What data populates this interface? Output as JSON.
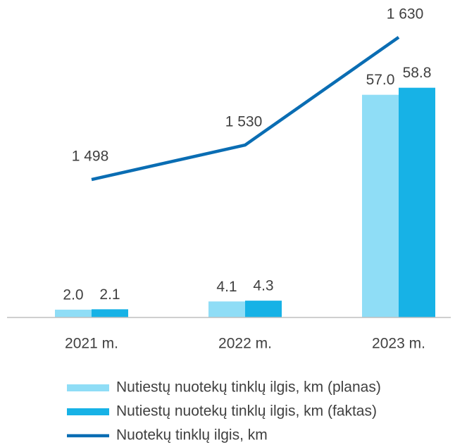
{
  "chart_data": {
    "type": "bar_line",
    "categories": [
      "2021 m.",
      "2022 m.",
      "2023 m."
    ],
    "series": [
      {
        "name": "Nutiestų nuotekų tinklų ilgis, km (planas)",
        "color": "#8fddf6",
        "type": "bar",
        "values": [
          2.0,
          4.1,
          57.0
        ],
        "value_labels": [
          "2.0",
          "4.1",
          "57.0"
        ]
      },
      {
        "name": "Nutiestų nuotekų tinklų ilgis, km (faktas)",
        "color": "#17b2e6",
        "type": "bar",
        "values": [
          2.1,
          4.3,
          58.8
        ],
        "value_labels": [
          "2.1",
          "4.3",
          "58.8"
        ]
      },
      {
        "name": "Nuotekų tinklų ilgis, km",
        "color": "#0a6db3",
        "type": "line",
        "axis": "y2",
        "values": [
          1498,
          1530,
          1630
        ],
        "value_labels": [
          "1 498",
          "1 530",
          "1 630"
        ]
      }
    ],
    "ylim": [
      0,
      80
    ],
    "y2lim": [
      1370,
      1660
    ],
    "legend": "bottom"
  }
}
